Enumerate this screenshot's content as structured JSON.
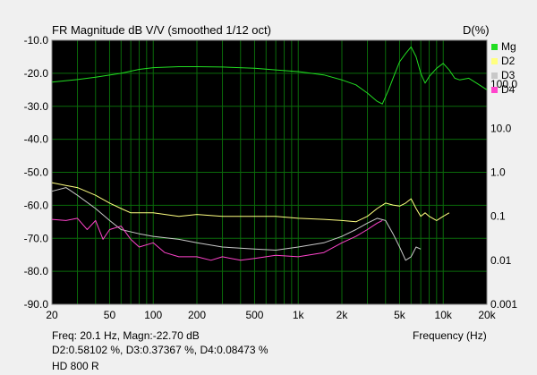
{
  "title": "FR Magnitude dB V/V (smoothed 1/12 oct)",
  "right_axis_title": "D(%)",
  "xlabel": "Frequency (Hz)",
  "readouts": {
    "line1": "Freq: 20.1 Hz, Magn:-22.70 dB",
    "line2": "D2:0.58102 %, D3:0.37367 %, D4:0.08473 %",
    "line3": "HD 800 R"
  },
  "colors": {
    "plot_bg": "#000000",
    "grid": "#0a6a0a",
    "page_bg": "#f0f0f0",
    "Mg": "#22dd22",
    "D2": "#ffff80",
    "D3": "#c8c8c8",
    "D4": "#ff44cc"
  },
  "chart_data": {
    "type": "line",
    "x_scale": "log",
    "xlim": [
      20,
      20000
    ],
    "ylim_left": [
      -90,
      -10
    ],
    "ylim_right_log": [
      0.001,
      1000
    ],
    "x_ticks": [
      20,
      50,
      100,
      200,
      500,
      1000,
      2000,
      5000,
      10000,
      20000
    ],
    "x_tick_labels": [
      "20",
      "50",
      "100",
      "200",
      "500",
      "1k",
      "2k",
      "5k",
      "10k",
      "20k"
    ],
    "y_ticks_left": [
      -10,
      -20,
      -30,
      -40,
      -50,
      -60,
      -70,
      -80,
      -90
    ],
    "y_tick_labels_left": [
      "-10.0",
      "-20.0",
      "-30.0",
      "-40.0",
      "-50.0",
      "-60.0",
      "-70.0",
      "-80.0",
      "-90.0"
    ],
    "y_ticks_right": [
      100,
      10,
      1,
      0.1,
      0.01,
      0.001
    ],
    "y_tick_labels_right": [
      "100.0",
      "10.0",
      "1.0",
      "0.1",
      "0.01",
      "0.001"
    ],
    "grid": true,
    "legend_position": "right",
    "series": [
      {
        "name": "Mg",
        "axis": "left",
        "x": [
          20,
          30,
          40,
          60,
          80,
          100,
          150,
          200,
          300,
          500,
          800,
          1000,
          1500,
          2000,
          2500,
          3000,
          3500,
          3800,
          4200,
          4600,
          5000,
          5500,
          6000,
          6500,
          7000,
          7500,
          8000,
          9000,
          10000,
          11000,
          12000,
          13000,
          15000,
          17000,
          20000
        ],
        "y": [
          -22.7,
          -21.9,
          -21.2,
          -20.0,
          -18.8,
          -18.3,
          -18.0,
          -18.0,
          -18.1,
          -18.5,
          -19.2,
          -19.5,
          -20.5,
          -22.0,
          -23.5,
          -26.0,
          -28.5,
          -29.3,
          -25.0,
          -20.5,
          -16.5,
          -14.0,
          -12.0,
          -15.0,
          -20.0,
          -23.0,
          -21.0,
          -18.5,
          -17.0,
          -19.0,
          -21.5,
          -22.0,
          -21.5,
          -23.0,
          -25.0
        ]
      },
      {
        "name": "D2",
        "axis": "right",
        "x": [
          20,
          25,
          30,
          40,
          50,
          60,
          70,
          100,
          150,
          200,
          300,
          500,
          700,
          1000,
          1500,
          2000,
          2500,
          3000,
          3500,
          4000,
          4500,
          5000,
          5500,
          6000,
          6500,
          7000,
          7500,
          8000,
          9000,
          10000,
          11000
        ],
        "y": [
          0.58,
          0.5,
          0.45,
          0.3,
          0.2,
          0.15,
          0.12,
          0.12,
          0.1,
          0.11,
          0.1,
          0.1,
          0.1,
          0.09,
          0.085,
          0.08,
          0.075,
          0.1,
          0.15,
          0.2,
          0.18,
          0.17,
          0.2,
          0.25,
          0.15,
          0.1,
          0.12,
          0.1,
          0.08,
          0.1,
          0.12
        ]
      },
      {
        "name": "D3",
        "axis": "right",
        "x": [
          20,
          25,
          30,
          40,
          50,
          60,
          80,
          100,
          150,
          200,
          300,
          500,
          700,
          1000,
          1500,
          2000,
          2500,
          3000,
          3500,
          4000,
          4500,
          5000,
          5500,
          6000,
          6500,
          7000
        ],
        "y": [
          0.37,
          0.45,
          0.3,
          0.15,
          0.08,
          0.05,
          0.04,
          0.035,
          0.03,
          0.025,
          0.02,
          0.018,
          0.017,
          0.02,
          0.025,
          0.035,
          0.05,
          0.07,
          0.09,
          0.08,
          0.04,
          0.02,
          0.01,
          0.012,
          0.02,
          0.018
        ]
      },
      {
        "name": "D4",
        "axis": "right",
        "x": [
          20,
          25,
          30,
          35,
          40,
          45,
          50,
          60,
          70,
          80,
          100,
          120,
          150,
          200,
          250,
          300,
          400,
          500,
          700,
          1000,
          1500,
          2000,
          2500,
          3000,
          3500,
          3800
        ],
        "y": [
          0.085,
          0.08,
          0.09,
          0.05,
          0.08,
          0.03,
          0.05,
          0.06,
          0.03,
          0.02,
          0.025,
          0.015,
          0.012,
          0.012,
          0.01,
          0.012,
          0.01,
          0.011,
          0.013,
          0.012,
          0.015,
          0.025,
          0.035,
          0.05,
          0.07,
          0.08
        ]
      }
    ]
  }
}
